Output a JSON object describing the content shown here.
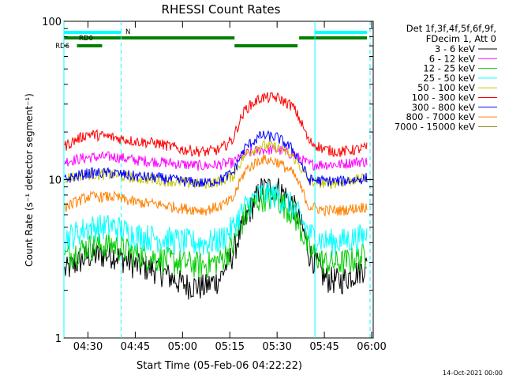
{
  "chart_data": {
    "type": "line",
    "title": "RHESSI Count Rates",
    "xlabel": "Start Time (05-Feb-06 04:22:22)",
    "ylabel": "Count Rate (s⁻¹ detector segment⁻¹)",
    "y_scale": "log",
    "ylim": [
      1,
      100
    ],
    "xlim": [
      "04:22:22",
      "06:00:30"
    ],
    "x_ticks": [
      "04:30",
      "04:45",
      "05:00",
      "05:15",
      "05:30",
      "05:45",
      "06:00"
    ],
    "y_tick_labels": [
      "1",
      "10",
      "100"
    ],
    "legend_header": [
      "Det 1f,3f,4f,5f,6f,9f,",
      "FDecim 1, Att 0"
    ],
    "legend_position": "right",
    "series": [
      {
        "name": "3 - 6 keV",
        "color": "#000000",
        "x": [
          "04:22",
          "04:30",
          "04:38",
          "04:45",
          "04:52",
          "05:00",
          "05:07",
          "05:12",
          "05:16",
          "05:20",
          "05:25",
          "05:30",
          "05:35",
          "05:40",
          "05:45",
          "05:50",
          "05:55",
          "05:59"
        ],
        "values": [
          2.6,
          3.3,
          3.4,
          2.9,
          2.7,
          2.2,
          2.1,
          2.4,
          3.4,
          5.5,
          8.8,
          9.0,
          7.0,
          3.5,
          2.4,
          2.3,
          2.6,
          2.9
        ]
      },
      {
        "name": "6 - 12 keV",
        "color": "#ff00ff",
        "x": [
          "04:22",
          "04:30",
          "04:38",
          "04:45",
          "04:52",
          "05:00",
          "05:07",
          "05:12",
          "05:16",
          "05:20",
          "05:25",
          "05:30",
          "05:35",
          "05:40",
          "05:45",
          "05:50",
          "05:55",
          "05:59"
        ],
        "values": [
          13.0,
          13.8,
          14.0,
          13.3,
          13.0,
          12.5,
          12.2,
          12.5,
          12.8,
          14.5,
          15.5,
          15.5,
          14.5,
          12.5,
          12.5,
          12.5,
          13.0,
          13.0
        ]
      },
      {
        "name": "12 - 25 keV",
        "color": "#00cc00",
        "x": [
          "04:22",
          "04:30",
          "04:38",
          "04:45",
          "04:52",
          "05:00",
          "05:07",
          "05:12",
          "05:16",
          "05:20",
          "05:25",
          "05:30",
          "05:35",
          "05:40",
          "05:45",
          "05:50",
          "05:55",
          "05:59"
        ],
        "values": [
          3.2,
          3.8,
          3.9,
          3.4,
          3.2,
          3.0,
          2.9,
          3.1,
          3.8,
          6.0,
          7.8,
          7.6,
          6.2,
          3.6,
          3.0,
          3.0,
          3.2,
          3.4
        ]
      },
      {
        "name": "25 - 50 keV",
        "color": "#00ffff",
        "x": [
          "04:22",
          "04:30",
          "04:38",
          "04:45",
          "04:52",
          "05:00",
          "05:07",
          "05:12",
          "05:16",
          "05:20",
          "05:25",
          "05:30",
          "05:35",
          "05:40",
          "05:45",
          "05:50",
          "05:55",
          "05:59"
        ],
        "values": [
          4.2,
          5.0,
          5.1,
          4.5,
          4.3,
          4.1,
          4.0,
          4.2,
          5.0,
          6.8,
          8.2,
          8.0,
          6.8,
          4.6,
          4.1,
          4.1,
          4.3,
          4.5
        ]
      },
      {
        "name": "50 - 100 keV",
        "color": "#c8c800",
        "x": [
          "04:22",
          "04:30",
          "04:38",
          "04:45",
          "04:52",
          "05:00",
          "05:07",
          "05:12",
          "05:16",
          "05:20",
          "05:25",
          "05:30",
          "05:35",
          "05:40",
          "05:45",
          "05:50",
          "05:55",
          "05:59"
        ],
        "values": [
          10.2,
          10.8,
          10.8,
          10.2,
          10.0,
          9.6,
          9.4,
          9.8,
          10.5,
          14.5,
          16.5,
          16.0,
          14.0,
          9.8,
          9.5,
          9.6,
          10.0,
          10.2
        ]
      },
      {
        "name": "100 - 300 keV",
        "color": "#ff0000",
        "x": [
          "04:22",
          "04:30",
          "04:38",
          "04:45",
          "04:52",
          "05:00",
          "05:07",
          "05:12",
          "05:16",
          "05:20",
          "05:25",
          "05:30",
          "05:35",
          "05:40",
          "05:45",
          "05:50",
          "05:55",
          "05:59"
        ],
        "values": [
          16.0,
          19.5,
          18.5,
          17.5,
          17.0,
          15.5,
          15.0,
          15.5,
          18.0,
          28.0,
          33.0,
          33.0,
          29.0,
          17.5,
          15.5,
          15.0,
          15.5,
          16.0
        ]
      },
      {
        "name": "300 - 800 keV",
        "color": "#0000ff",
        "x": [
          "04:22",
          "04:30",
          "04:38",
          "04:45",
          "04:52",
          "05:00",
          "05:07",
          "05:12",
          "05:16",
          "05:20",
          "05:25",
          "05:30",
          "05:35",
          "05:40",
          "05:45",
          "05:50",
          "05:55",
          "05:59"
        ],
        "values": [
          10.0,
          11.0,
          11.0,
          10.5,
          10.3,
          9.8,
          9.5,
          10.0,
          11.0,
          16.0,
          19.0,
          18.5,
          15.5,
          10.0,
          9.8,
          9.8,
          10.0,
          10.3
        ]
      },
      {
        "name": "800 - 7000 keV",
        "color": "#ff8000",
        "x": [
          "04:22",
          "04:30",
          "04:38",
          "04:45",
          "04:52",
          "05:00",
          "05:07",
          "05:12",
          "05:16",
          "05:20",
          "05:25",
          "05:30",
          "05:35",
          "05:40",
          "05:45",
          "05:50",
          "05:55",
          "05:59"
        ],
        "values": [
          6.6,
          7.8,
          7.8,
          7.2,
          7.0,
          6.6,
          6.4,
          6.8,
          7.5,
          11.5,
          13.5,
          13.0,
          11.0,
          6.8,
          6.4,
          6.4,
          6.6,
          6.8
        ]
      },
      {
        "name": "7000 - 15000 keV",
        "color": "#808000",
        "x": [],
        "values": []
      }
    ],
    "vertical_lines": [
      {
        "x": "04:22:22",
        "style": "solid",
        "color": "#00ffff"
      },
      {
        "x": "04:40:30",
        "style": "dashed",
        "color": "#00ffff"
      },
      {
        "x": "05:42:00",
        "style": "solid",
        "color": "#00ffff"
      },
      {
        "x": "05:59:30",
        "style": "dashed",
        "color": "#00ffff"
      }
    ],
    "flag_bars": [
      {
        "label": "N",
        "color": "#00ffff",
        "row": 0,
        "segments": [
          [
            "04:22:22",
            "04:40:30"
          ],
          [
            "05:42:00",
            "06:00:30"
          ]
        ]
      },
      {
        "label": "RD0",
        "color": "#008000",
        "row": 1,
        "segments": [
          [
            "04:22:22",
            "05:16:30"
          ],
          [
            "05:37:00",
            "06:00:30"
          ]
        ]
      },
      {
        "label": "RD6",
        "color": "#008000",
        "row": 2,
        "segments": [
          [
            "04:26:30",
            "04:34:30"
          ],
          [
            "05:16:30",
            "05:36:30"
          ]
        ]
      }
    ]
  },
  "footer": {
    "timestamp": "14-Oct-2021 00:00"
  }
}
